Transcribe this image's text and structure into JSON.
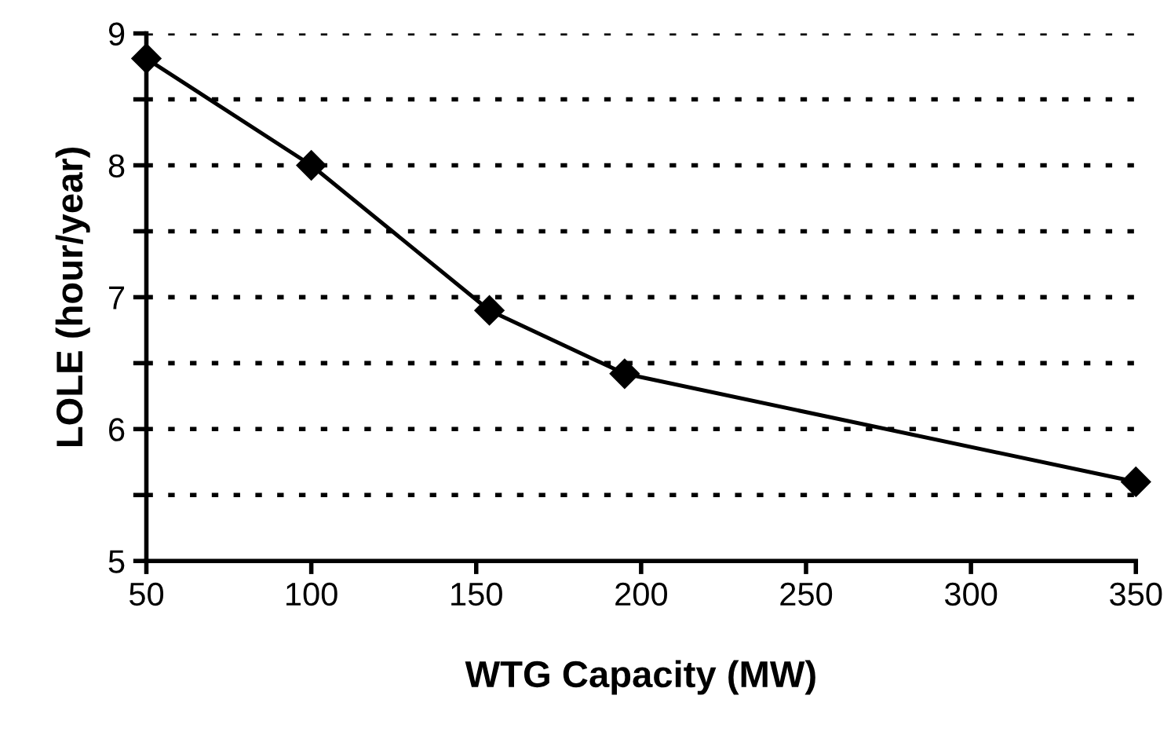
{
  "chart_data": {
    "type": "line",
    "xlabel": "WTG Capacity (MW)",
    "ylabel": "LOLE (hour/year)",
    "x": [
      50,
      100,
      154,
      195,
      350
    ],
    "series": [
      {
        "color": "#000000",
        "values": [
          8.81,
          8.0,
          6.9,
          6.42,
          5.6
        ]
      }
    ],
    "xlim": [
      50,
      350
    ],
    "xticks": [
      50,
      100,
      150,
      200,
      250,
      300,
      350
    ],
    "ylim": [
      5,
      9
    ],
    "yticks": [
      5,
      {
        "value": 5.5,
        "label": null
      },
      6,
      {
        "value": 6.5,
        "label": null
      },
      7,
      {
        "value": 7.5,
        "label": null
      },
      8,
      {
        "value": 8.5,
        "label": null
      },
      9
    ],
    "grid": "y",
    "marker": "diamond",
    "line_style": "solid",
    "legend": false
  }
}
